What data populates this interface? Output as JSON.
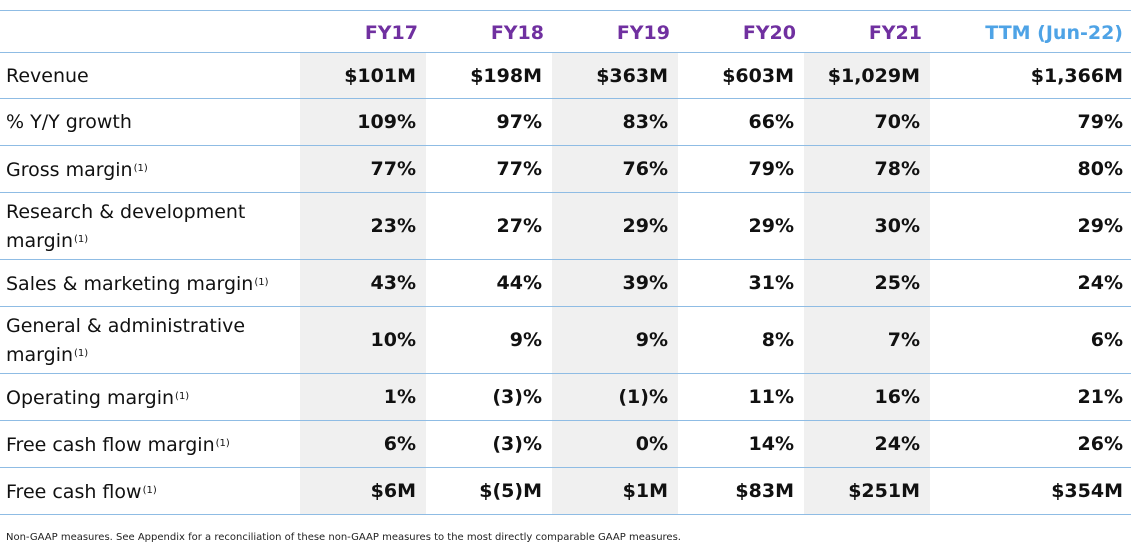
{
  "table": {
    "columns": [
      "FY17",
      "FY18",
      "FY19",
      "FY20",
      "FY21",
      "TTM (Jun-22)"
    ],
    "rows": [
      {
        "label": "Revenue",
        "footnote": "",
        "values": [
          "$101M",
          "$198M",
          "$363M",
          "$603M",
          "$1,029M",
          "$1,366M"
        ]
      },
      {
        "label": "% Y/Y growth",
        "footnote": "",
        "values": [
          "109%",
          "97%",
          "83%",
          "66%",
          "70%",
          "79%"
        ]
      },
      {
        "label": "Gross margin",
        "footnote": "(1)",
        "values": [
          "77%",
          "77%",
          "76%",
          "79%",
          "78%",
          "80%"
        ]
      },
      {
        "label": "Research & development margin",
        "footnote": "(1)",
        "values": [
          "23%",
          "27%",
          "29%",
          "29%",
          "30%",
          "29%"
        ]
      },
      {
        "label": "Sales & marketing margin",
        "footnote": "(1)",
        "values": [
          "43%",
          "44%",
          "39%",
          "31%",
          "25%",
          "24%"
        ]
      },
      {
        "label": "General & administrative margin",
        "footnote": "(1)",
        "values": [
          "10%",
          "9%",
          "9%",
          "8%",
          "7%",
          "6%"
        ]
      },
      {
        "label": "Operating margin",
        "footnote": "(1)",
        "values": [
          "1%",
          "(3)%",
          "(1)%",
          "11%",
          "16%",
          "21%"
        ]
      },
      {
        "label": "Free cash flow margin",
        "footnote": "(1)",
        "values": [
          "6%",
          "(3)%",
          "0%",
          "14%",
          "24%",
          "26%"
        ]
      },
      {
        "label": "Free cash flow",
        "footnote": "(1)",
        "values": [
          "$6M",
          "$(5)M",
          "$1M",
          "$83M",
          "$251M",
          "$354M"
        ]
      }
    ]
  },
  "footnote_text": "Non-GAAP measures. See Appendix for a reconciliation of these non-GAAP measures to the most directly comparable GAAP measures.",
  "colors": {
    "fiscal_year_header": "#7030a0",
    "ttm_header": "#4ea3e6",
    "row_rule": "#8fbce4",
    "shaded_column": "#f0f0f0"
  }
}
